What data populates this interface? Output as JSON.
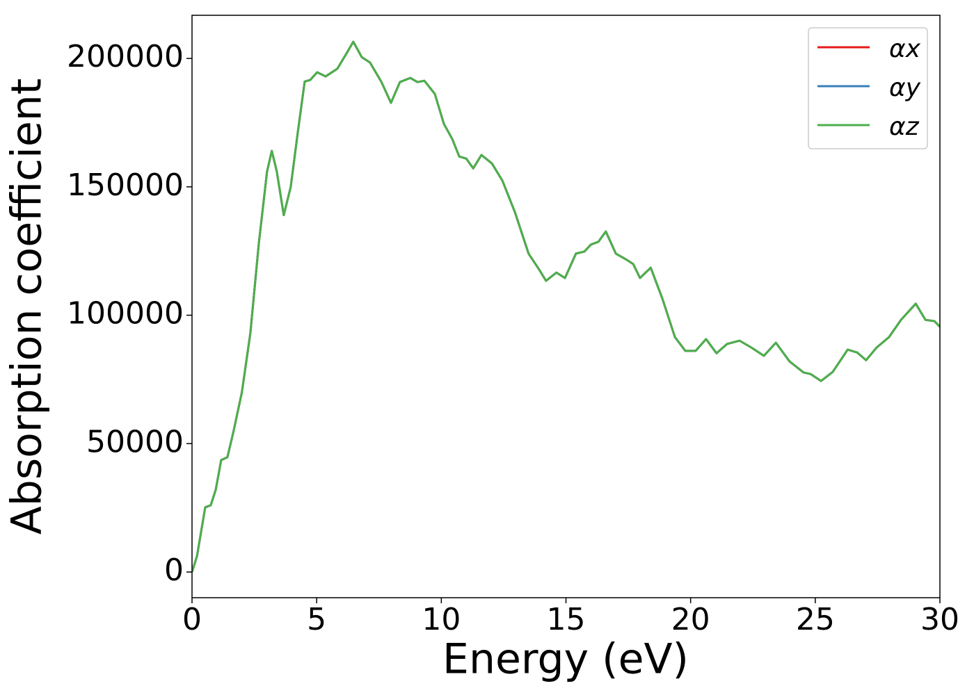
{
  "chart_data": {
    "type": "line",
    "xlabel": "Energy (eV)",
    "ylabel": "Absorption coefficient",
    "x": [
      0,
      0.2,
      0.53,
      0.75,
      0.95,
      1.17,
      1.42,
      1.67,
      2.0,
      2.34,
      2.68,
      3.01,
      3.2,
      3.4,
      3.68,
      3.96,
      4.24,
      4.52,
      4.74,
      5.02,
      5.36,
      5.83,
      6.2,
      6.47,
      6.81,
      7.14,
      7.6,
      7.98,
      8.34,
      8.76,
      9.04,
      9.32,
      9.74,
      10.1,
      10.44,
      10.72,
      11.0,
      11.28,
      11.61,
      12.03,
      12.45,
      12.95,
      13.5,
      13.93,
      14.2,
      14.62,
      14.96,
      15.4,
      15.74,
      16.0,
      16.3,
      16.6,
      17.0,
      17.4,
      17.7,
      17.97,
      18.4,
      18.87,
      19.37,
      19.79,
      20.2,
      20.62,
      21.04,
      21.46,
      21.96,
      22.44,
      22.94,
      23.42,
      23.97,
      24.53,
      24.81,
      25.23,
      25.7,
      26.3,
      26.68,
      27.04,
      27.46,
      27.96,
      28.44,
      29.03,
      29.42,
      29.78,
      30.0
    ],
    "series": [
      {
        "name": "αx",
        "color": "#e41a1c",
        "values": [
          0,
          6200,
          25200,
          26000,
          32000,
          43600,
          44700,
          55000,
          70000,
          93000,
          128000,
          156000,
          164000,
          156000,
          139000,
          150000,
          171000,
          191000,
          191600,
          194600,
          193000,
          196000,
          202000,
          206500,
          200500,
          198400,
          190800,
          182700,
          190800,
          192400,
          190800,
          191300,
          186200,
          174600,
          168600,
          161800,
          161000,
          157200,
          162400,
          159100,
          152400,
          140200,
          124000,
          117700,
          113400,
          116600,
          114500,
          124000,
          124800,
          127500,
          128600,
          132600,
          124000,
          121800,
          119900,
          114500,
          118500,
          106400,
          91500,
          86100,
          86100,
          90700,
          85200,
          88800,
          90100,
          87400,
          84200,
          89300,
          82000,
          77700,
          77100,
          74400,
          77900,
          86600,
          85500,
          82500,
          87400,
          91500,
          98200,
          104500,
          98200,
          97700,
          95500
        ]
      },
      {
        "name": "αy",
        "color": "#377eb8",
        "values": [
          0,
          6200,
          25200,
          26000,
          32000,
          43600,
          44700,
          55000,
          70000,
          93000,
          128000,
          156000,
          164000,
          156000,
          139000,
          150000,
          171000,
          191000,
          191600,
          194600,
          193000,
          196000,
          202000,
          206500,
          200500,
          198400,
          190800,
          182700,
          190800,
          192400,
          190800,
          191300,
          186200,
          174600,
          168600,
          161800,
          161000,
          157200,
          162400,
          159100,
          152400,
          140200,
          124000,
          117700,
          113400,
          116600,
          114500,
          124000,
          124800,
          127500,
          128600,
          132600,
          124000,
          121800,
          119900,
          114500,
          118500,
          106400,
          91500,
          86100,
          86100,
          90700,
          85200,
          88800,
          90100,
          87400,
          84200,
          89300,
          82000,
          77700,
          77100,
          74400,
          77900,
          86600,
          85500,
          82500,
          87400,
          91500,
          98200,
          104500,
          98200,
          97700,
          95500
        ]
      },
      {
        "name": "αz",
        "color": "#4daf4a",
        "values": [
          0,
          6200,
          25200,
          26000,
          32000,
          43600,
          44700,
          55000,
          70000,
          93000,
          128000,
          156000,
          164000,
          156000,
          139000,
          150000,
          171000,
          191000,
          191600,
          194600,
          193000,
          196000,
          202000,
          206500,
          200500,
          198400,
          190800,
          182700,
          190800,
          192400,
          190800,
          191300,
          186200,
          174600,
          168600,
          161800,
          161000,
          157200,
          162400,
          159100,
          152400,
          140200,
          124000,
          117700,
          113400,
          116600,
          114500,
          124000,
          124800,
          127500,
          128600,
          132600,
          124000,
          121800,
          119900,
          114500,
          118500,
          106400,
          91500,
          86100,
          86100,
          90700,
          85200,
          88800,
          90100,
          87400,
          84200,
          89300,
          82000,
          77700,
          77100,
          74400,
          77900,
          86600,
          85500,
          82500,
          87400,
          91500,
          98200,
          104500,
          98200,
          97700,
          95500
        ]
      }
    ],
    "xlim": [
      0,
      30
    ],
    "xticks": [
      0,
      5,
      10,
      15,
      20,
      25,
      30
    ],
    "ylim": [
      -10000,
      216800
    ],
    "yticks": [
      0,
      50000,
      100000,
      150000,
      200000
    ],
    "legend": "upper right"
  }
}
